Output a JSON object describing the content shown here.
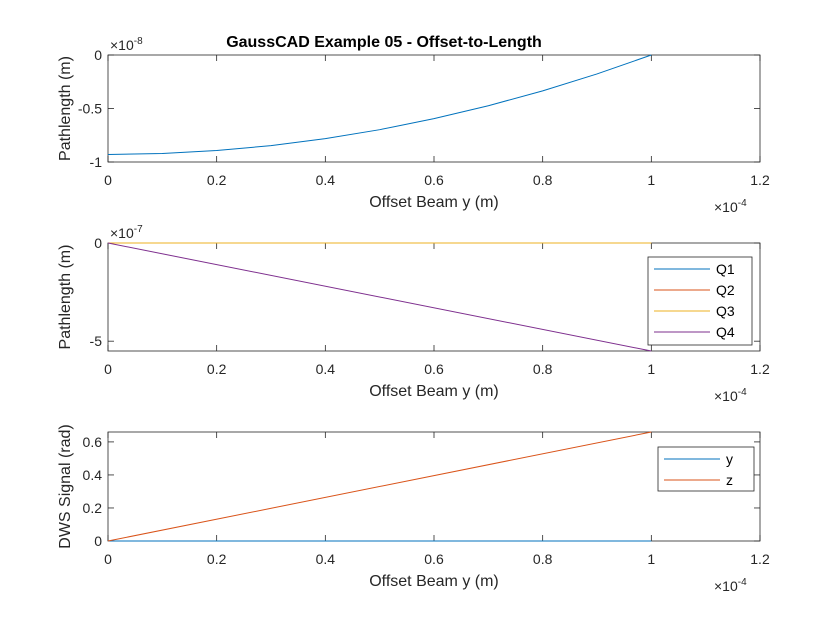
{
  "chart_data": [
    {
      "type": "line",
      "title": "GaussCAD Example 05 - Offset-to-Length",
      "xlabel": "Offset Beam y (m)",
      "ylabel": "Pathlength (m)",
      "xlim": [
        0,
        1.2
      ],
      "ylim": [
        -1,
        0
      ],
      "x_ticks": [
        "0",
        "0.2",
        "0.4",
        "0.6",
        "0.8",
        "1",
        "1.2"
      ],
      "y_ticks": [
        "0",
        "-0.5",
        "-1"
      ],
      "y_exponent": "-8",
      "x_exponent": "-4",
      "series": [
        {
          "color": "#0072BD",
          "x": [
            0,
            0.1,
            0.2,
            0.3,
            0.4,
            0.5,
            0.6,
            0.7,
            0.8,
            0.9,
            1.0
          ],
          "y": [
            -0.93,
            -0.921,
            -0.893,
            -0.847,
            -0.781,
            -0.698,
            -0.595,
            -0.474,
            -0.335,
            -0.177,
            0
          ]
        }
      ]
    },
    {
      "type": "line",
      "xlabel": "Offset Beam y (m)",
      "ylabel": "Pathlength (m)",
      "xlim": [
        0,
        1.2
      ],
      "ylim": [
        -5.5,
        0
      ],
      "x_ticks": [
        "0",
        "0.2",
        "0.4",
        "0.6",
        "0.8",
        "1",
        "1.2"
      ],
      "y_ticks": [
        "0",
        "-5"
      ],
      "y_exponent": "-7",
      "x_exponent": "-4",
      "legend": "right",
      "series": [
        {
          "name": "Q1",
          "color": "#0072BD",
          "x": [
            0,
            1.0
          ],
          "y": [
            0,
            0
          ]
        },
        {
          "name": "Q2",
          "color": "#D95319",
          "x": [
            0,
            1.0
          ],
          "y": [
            0,
            0
          ]
        },
        {
          "name": "Q3",
          "color": "#EDB120",
          "x": [
            0,
            1.0
          ],
          "y": [
            0,
            0
          ]
        },
        {
          "name": "Q4",
          "color": "#7E2F8E",
          "x": [
            0,
            1.0
          ],
          "y": [
            0,
            -5.5
          ]
        }
      ]
    },
    {
      "type": "line",
      "xlabel": "Offset Beam y (m)",
      "ylabel": "DWS Signal (rad)",
      "xlim": [
        0,
        1.2
      ],
      "ylim": [
        0,
        0.66
      ],
      "x_ticks": [
        "0",
        "0.2",
        "0.4",
        "0.6",
        "0.8",
        "1",
        "1.2"
      ],
      "y_ticks": [
        "0",
        "0.2",
        "0.4",
        "0.6"
      ],
      "x_exponent": "-4",
      "legend": "top-right",
      "series": [
        {
          "name": "y",
          "color": "#0072BD",
          "x": [
            0,
            1.0
          ],
          "y": [
            0,
            0
          ]
        },
        {
          "name": "z",
          "color": "#D95319",
          "x": [
            0,
            1.0
          ],
          "y": [
            0,
            0.66
          ]
        }
      ]
    }
  ]
}
